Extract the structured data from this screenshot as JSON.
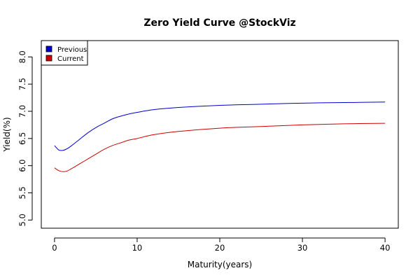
{
  "chart_data": {
    "type": "line",
    "title": "Zero Yield Curve @StockViz",
    "xlabel": "Maturity(years)",
    "ylabel": "Yield(%)",
    "xlim": [
      -1.6,
      41.6
    ],
    "ylim": [
      4.85,
      8.3
    ],
    "xticks": [
      0,
      10,
      20,
      30,
      40
    ],
    "yticks": [
      5.0,
      5.5,
      6.0,
      6.5,
      7.0,
      7.5,
      8.0
    ],
    "xtick_labels": [
      "0",
      "10",
      "20",
      "30",
      "40"
    ],
    "ytick_labels": [
      "5.0",
      "5.5",
      "6.0",
      "6.5",
      "7.0",
      "7.5",
      "8.0"
    ],
    "grid": false,
    "legend_position": "top-left",
    "series": [
      {
        "name": "Previous",
        "color": "#0000cc",
        "x": [
          0,
          0.5,
          1,
          1.5,
          2,
          3,
          4,
          5,
          6,
          7,
          8,
          9,
          10,
          12,
          15,
          20,
          25,
          30,
          35,
          40
        ],
        "values": [
          6.37,
          6.29,
          6.28,
          6.31,
          6.36,
          6.48,
          6.6,
          6.7,
          6.78,
          6.86,
          6.91,
          6.95,
          6.98,
          7.03,
          7.07,
          7.11,
          7.13,
          7.15,
          7.16,
          7.17
        ]
      },
      {
        "name": "Current",
        "color": "#cc0000",
        "x": [
          0,
          0.5,
          1,
          1.5,
          2,
          3,
          4,
          5,
          6,
          7,
          8,
          9,
          10,
          12,
          15,
          20,
          25,
          30,
          35,
          40
        ],
        "values": [
          5.96,
          5.91,
          5.89,
          5.9,
          5.94,
          6.03,
          6.12,
          6.21,
          6.3,
          6.37,
          6.42,
          6.47,
          6.5,
          6.57,
          6.63,
          6.69,
          6.72,
          6.75,
          6.77,
          6.78
        ]
      }
    ]
  }
}
